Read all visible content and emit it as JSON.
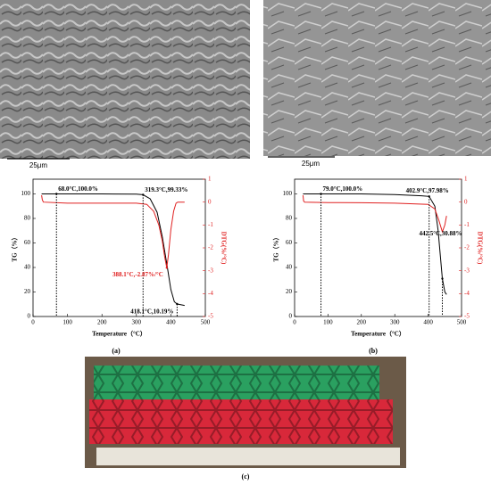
{
  "images": {
    "sem_a_scale": "25μm",
    "sem_b_scale": "25μm"
  },
  "panel_labels": [
    "(a)",
    "(b)",
    "(c)"
  ],
  "chart_data": [
    {
      "type": "line",
      "ylabel": "TG（%）",
      "y2label": "DTG(%/°C)",
      "xlabel": "Temperature（°C）",
      "xlim": [
        0,
        500
      ],
      "xticks": [
        0,
        100,
        200,
        300,
        400,
        500
      ],
      "ylim": [
        0,
        112
      ],
      "yticks": [
        0,
        20,
        40,
        60,
        80,
        100
      ],
      "y2lim": [
        -5,
        1
      ],
      "y2ticks": [
        1,
        0,
        -1,
        -2,
        -3,
        -4,
        -5
      ],
      "series": [
        {
          "name": "TG",
          "color": "#000000",
          "x": [
            25,
            100,
            200,
            300,
            319.3,
            340,
            360,
            375,
            390,
            400,
            410,
            418.1,
            430,
            440
          ],
          "values": [
            100,
            100,
            100,
            99.8,
            99.33,
            96,
            85,
            65,
            40,
            22,
            12,
            10.19,
            9.5,
            9
          ]
        },
        {
          "name": "DTG",
          "color": "#e02020",
          "axis": "y2",
          "x": [
            25,
            27,
            30,
            100,
            200,
            300,
            330,
            350,
            365,
            375,
            382,
            388.1,
            393,
            400,
            408,
            415,
            420,
            440
          ],
          "values": [
            0.3,
            0.1,
            0,
            -0.05,
            -0.05,
            -0.05,
            -0.1,
            -0.4,
            -1,
            -1.7,
            -2.4,
            -2.87,
            -2.3,
            -1.2,
            -0.4,
            -0.05,
            0,
            0
          ]
        }
      ],
      "annotations": [
        {
          "text": "68.0°C,100.0%",
          "x": 68,
          "y": 100
        },
        {
          "text": "319.3°C,99.33%",
          "x": 319.3,
          "y": 99.33
        },
        {
          "text": "388.1°C,-2.87%/°C",
          "x": 388.1,
          "y": -2.87,
          "axis": "y2",
          "color": "#e02020"
        },
        {
          "text": "418.1°C,10.19%",
          "x": 418.1,
          "y": 10.19
        }
      ]
    },
    {
      "type": "line",
      "ylabel": "TG（%）",
      "y2label": "DTG(%/°C)",
      "xlabel": "Temperature（°C）",
      "xlim": [
        0,
        500
      ],
      "xticks": [
        0,
        100,
        200,
        300,
        400,
        500
      ],
      "ylim": [
        0,
        112
      ],
      "yticks": [
        0,
        20,
        40,
        60,
        80,
        100
      ],
      "y2lim": [
        -5,
        1
      ],
      "y2ticks": [
        1,
        0,
        -1,
        -2,
        -3,
        -4,
        -5
      ],
      "series": [
        {
          "name": "TG",
          "color": "#000000",
          "x": [
            25,
            100,
            200,
            300,
            380,
            402.9,
            420,
            430,
            442.5,
            450,
            455
          ],
          "values": [
            100,
            100,
            100,
            99.5,
            98.5,
            97.98,
            90,
            70,
            30.88,
            20,
            18
          ]
        },
        {
          "name": "DTG",
          "color": "#e02020",
          "axis": "y2",
          "x": [
            25,
            27,
            30,
            100,
            200,
            300,
            400,
            420,
            432,
            442.5,
            450,
            455
          ],
          "values": [
            0.3,
            0.05,
            0,
            -0.02,
            -0.03,
            -0.05,
            -0.1,
            -0.3,
            -0.8,
            -1.3,
            -1,
            -0.6
          ]
        }
      ],
      "annotations": [
        {
          "text": "79.0°C,100.0%",
          "x": 79,
          "y": 100
        },
        {
          "text": "402.9°C,97.98%",
          "x": 402.9,
          "y": 97.98
        },
        {
          "text": "442.5°C,30.88%",
          "x": 442.5,
          "y": 30.88
        }
      ]
    }
  ]
}
